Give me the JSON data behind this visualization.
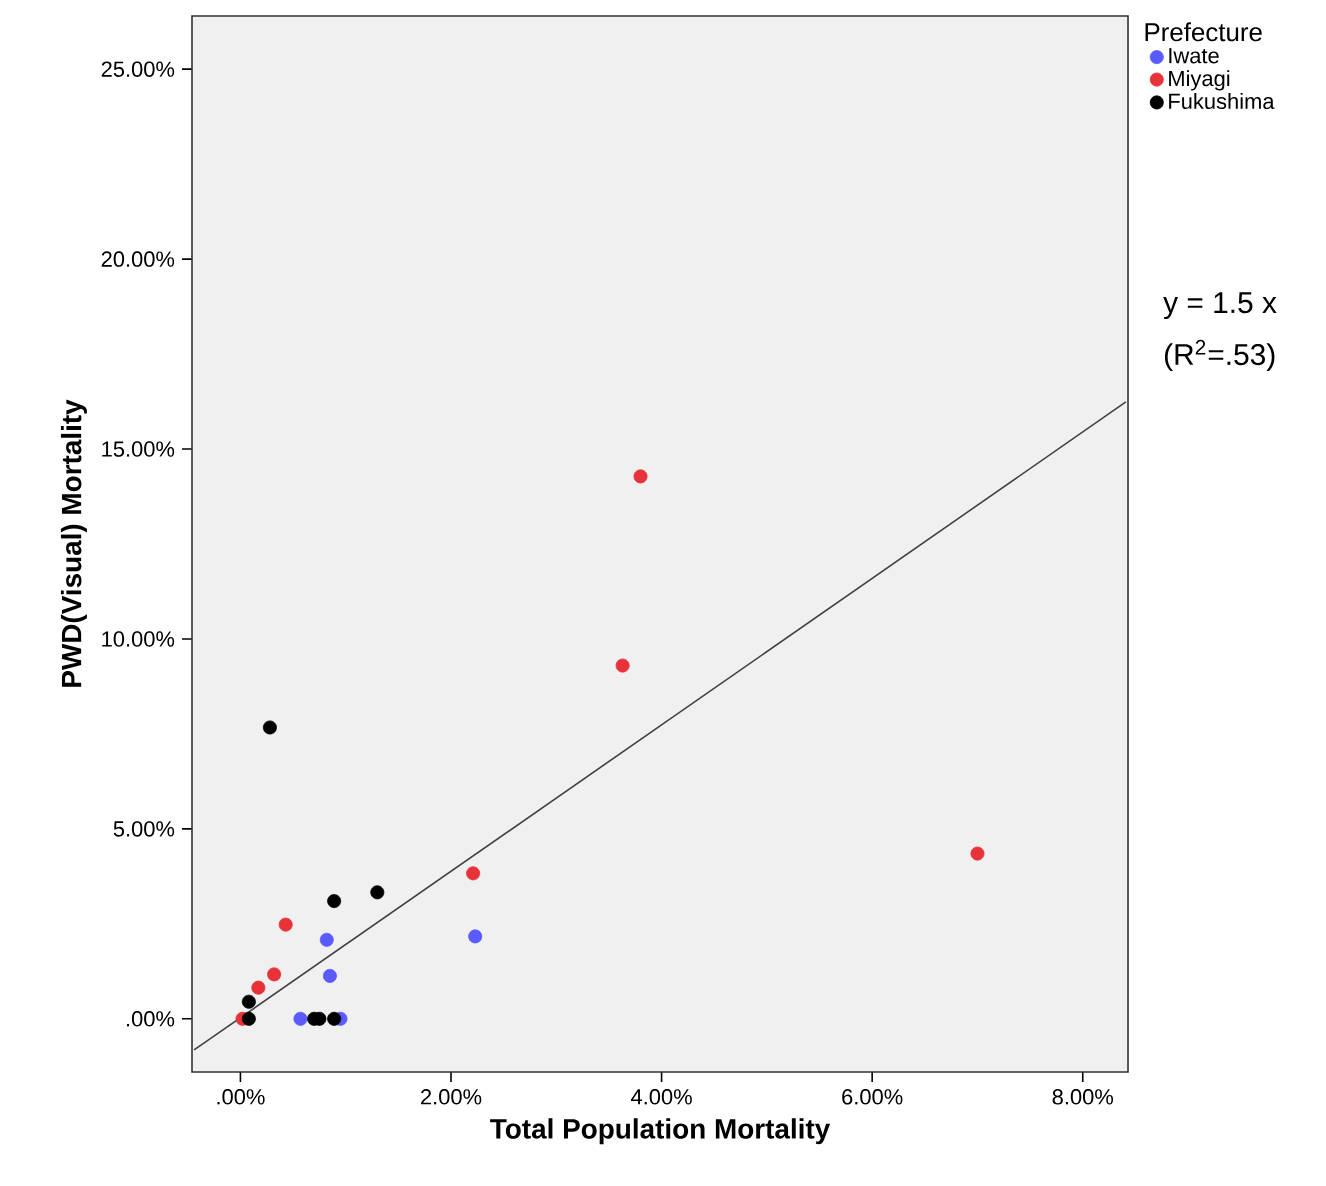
{
  "chart_data": {
    "type": "scatter",
    "xlabel": "Total Population Mortality",
    "ylabel": "PWD(Visual) Mortality",
    "legend_title": "Prefecture",
    "series": [
      {
        "name": "Iwate",
        "marker": "circle",
        "color": "#5a5aff",
        "x": [
          2.23,
          0.82,
          0.85,
          0.57,
          0.95
        ],
        "values": [
          2.17,
          2.08,
          1.13,
          0.0,
          0.0
        ]
      },
      {
        "name": "Miyagi",
        "marker": "circle",
        "color": "#e8323a",
        "x": [
          3.8,
          3.63,
          7.0,
          2.21,
          0.43,
          0.32,
          0.17,
          0.02
        ],
        "values": [
          14.28,
          9.3,
          4.35,
          3.83,
          2.48,
          1.17,
          0.82,
          0.0
        ]
      },
      {
        "name": "Fukushima",
        "marker": "circle",
        "color": "#000000",
        "x": [
          0.28,
          1.3,
          0.89,
          0.08,
          0.08,
          0.7,
          0.75,
          0.89
        ],
        "values": [
          7.67,
          3.33,
          3.1,
          0.45,
          0.0,
          0.0,
          0.0,
          0.0
        ]
      },
      {
        "type": "line",
        "marker": "none",
        "color": "#404040",
        "x": [
          -0.44,
          8.41
        ],
        "values": [
          -0.82,
          16.24
        ]
      }
    ],
    "annotations": [
      "y = 1.5 x",
      "(R$^{2}$=.53)"
    ],
    "xlim": [
      -0.46,
      8.43
    ],
    "ylim": [
      -1.4,
      26.4
    ],
    "xticks": [
      {
        "value": 0,
        "label": ".00%"
      },
      {
        "value": 2,
        "label": "2.00%"
      },
      {
        "value": 4,
        "label": "4.00%"
      },
      {
        "value": 6,
        "label": "6.00%"
      },
      {
        "value": 8,
        "label": "8.00%"
      }
    ],
    "yticks": [
      {
        "value": 0,
        "label": ".00%"
      },
      {
        "value": 5,
        "label": "5.00%"
      },
      {
        "value": 10,
        "label": "10.00%"
      },
      {
        "value": 15,
        "label": "15.00%"
      },
      {
        "value": 20,
        "label": "20.00%"
      },
      {
        "value": 25,
        "label": "25.00%"
      }
    ],
    "grid": false,
    "legend": "top right"
  }
}
